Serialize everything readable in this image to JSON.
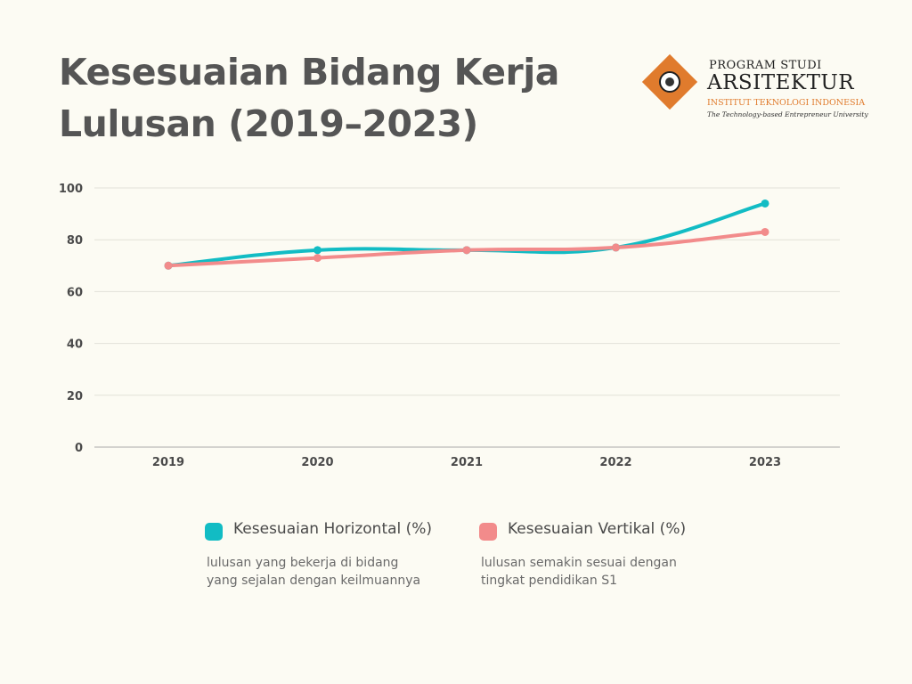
{
  "title_line1": "Kesesuaian Bidang Kerja",
  "title_line2": "Lulusan (2019–2023)",
  "logo": {
    "line1": "PROGRAM STUDI",
    "line2": "ARSITEKTUR",
    "line3": "INSTITUT TEKNOLOGI INDONESIA",
    "line4": "The Technology-based Entrepreneur University",
    "accent_color": "#e07b2d"
  },
  "chart_data": {
    "type": "line",
    "title": "Kesesuaian Bidang Kerja Lulusan (2019–2023)",
    "categories": [
      "2019",
      "2020",
      "2021",
      "2022",
      "2023"
    ],
    "ylim": [
      0,
      100
    ],
    "yticks": [
      0,
      20,
      40,
      60,
      80,
      100
    ],
    "grid": true,
    "legend_position": "bottom",
    "series": [
      {
        "name": "Kesesuaian Horizontal (%)",
        "description_line1": "lulusan yang bekerja di bidang",
        "description_line2": "yang sejalan dengan keilmuannya",
        "color": "#12bcc4",
        "values": [
          70,
          76,
          76,
          77,
          94
        ]
      },
      {
        "name": "Kesesuaian Vertikal (%)",
        "description_line1": "lulusan semakin sesuai dengan",
        "description_line2": "tingkat pendidikan S1",
        "color": "#f28b8b",
        "values": [
          70,
          73,
          76,
          77,
          83
        ]
      }
    ]
  }
}
